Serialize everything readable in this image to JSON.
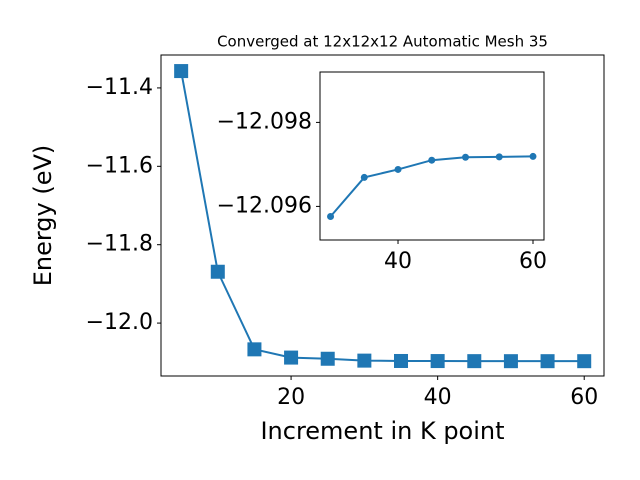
{
  "chart_data": [
    {
      "type": "line",
      "title": "Converged at 12x12x12 Automatic Mesh 35",
      "x_label": "Increment in K point",
      "y_label": "Energy (eV)",
      "x": [
        5,
        10,
        15,
        20,
        25,
        30,
        35,
        40,
        45,
        50,
        55,
        60
      ],
      "series": [
        {
          "color": "#1f77b4",
          "marker": "square",
          "values": [
            -11.357,
            -11.869,
            -12.067,
            -12.088,
            -12.091,
            -12.09576,
            -12.09669,
            -12.09688,
            -12.0971,
            -12.09717,
            -12.09718,
            -12.09719
          ]
        }
      ],
      "xlim": [
        2.25,
        62.7
      ],
      "xticks": [
        20,
        40,
        60
      ],
      "ylim": [
        -12.135,
        -11.316
      ],
      "yticks": [
        {
          "value": -12.0,
          "label": "−12.0"
        },
        {
          "value": -11.8,
          "label": "−11.8"
        },
        {
          "value": -11.6,
          "label": "−11.6"
        },
        {
          "value": -11.4,
          "label": "−11.4"
        }
      ]
    },
    {
      "type": "line",
      "x": [
        30,
        35,
        40,
        45,
        50,
        55,
        60
      ],
      "series": [
        {
          "color": "#1f77b4",
          "marker": "circle",
          "values": [
            -12.09576,
            -12.09669,
            -12.09688,
            -12.0971,
            -12.09717,
            -12.09718,
            -12.09719
          ]
        }
      ],
      "xlim": [
        28.44,
        61.63
      ],
      "xticks": [
        40,
        60
      ],
      "ylim": [
        -12.0952,
        -12.0992
      ],
      "yticks": [
        {
          "value": -12.096,
          "label": "−12.096"
        },
        {
          "value": -12.098,
          "label": "−12.098"
        }
      ]
    }
  ]
}
